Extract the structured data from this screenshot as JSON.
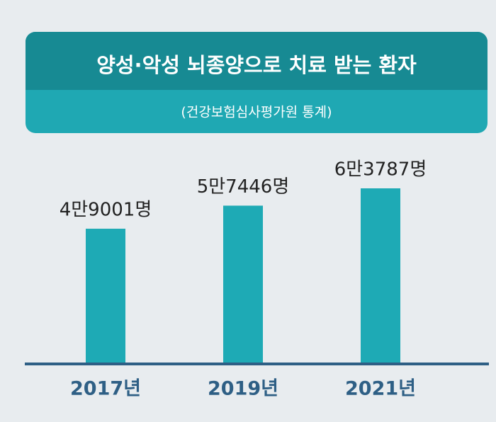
{
  "chart_data": {
    "type": "bar",
    "title": "양성·악성 뇌종양으로 치료 받는 환자",
    "subtitle": "(건강보험심사평가원 통계)",
    "categories": [
      "2017년",
      "2019년",
      "2021년"
    ],
    "values": [
      49001,
      57446,
      63787
    ],
    "value_labels": [
      "4만9001명",
      "5만7446명",
      "6만3787명"
    ],
    "color": "#1eaab5"
  }
}
